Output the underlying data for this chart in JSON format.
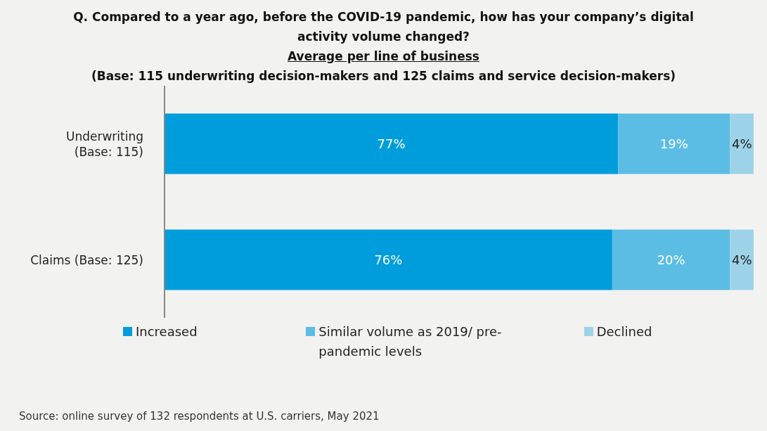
{
  "chart_data": {
    "type": "bar",
    "orientation": "horizontal",
    "stacked": true,
    "title": "Q. Compared to a year ago, before the COVID-19 pandemic, how has your company’s digital activity volume changed?",
    "subtitle": "Average per line of business",
    "annotations": [
      "(Base: 115 underwriting decision-makers and 125 claims and service decision-makers)",
      "Source: online survey of 132 respondents at U.S. carriers, May 2021"
    ],
    "categories": [
      "Underwriting (Base: 115)",
      "Claims (Base: 125)"
    ],
    "series": [
      {
        "name": "Increased",
        "color": "#009ddc",
        "values": [
          77,
          76
        ],
        "value_labels": [
          "77%",
          "76%"
        ]
      },
      {
        "name": "Similar volume as 2019/ pre-pandemic levels",
        "color": "#5bbde4",
        "values": [
          19,
          20
        ],
        "value_labels": [
          "19%",
          "20%"
        ]
      },
      {
        "name": "Declined",
        "color": "#9dd3e8",
        "values": [
          4,
          4
        ],
        "value_labels": [
          "4%",
          "4%"
        ]
      }
    ],
    "legend": "bottom",
    "grid": false
  }
}
